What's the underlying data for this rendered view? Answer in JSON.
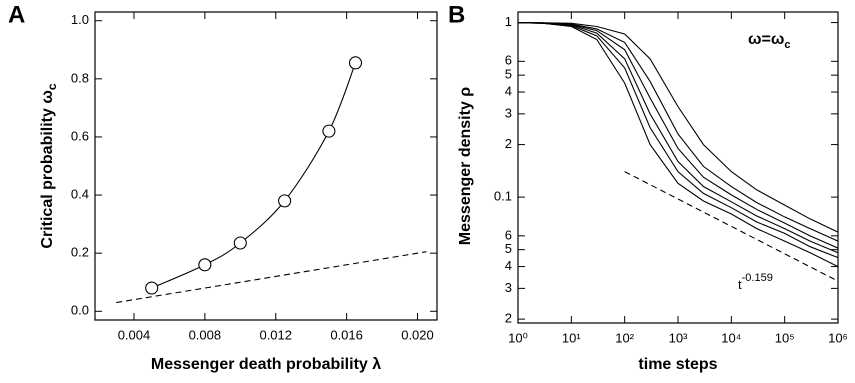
{
  "chart_data": [
    {
      "type": "scatter",
      "panel": "A",
      "xlabel": "Messenger death probability λ",
      "ylabel": "Critical probability ω",
      "ylabel_sub": "c",
      "xlim": [
        0.0018,
        0.0211
      ],
      "ylim": [
        -0.03,
        1.03
      ],
      "xticks": [
        0.004,
        0.008,
        0.012,
        0.016,
        {
          "value": 0.02,
          "label": "0.020"
        }
      ],
      "yticks": [
        {
          "value": 0,
          "label": "0.0"
        },
        0.2,
        0.4,
        0.6,
        0.8,
        {
          "value": 1,
          "label": "1.0"
        }
      ],
      "series": [
        {
          "color": "#000000",
          "marker": "circle",
          "line": "smooth",
          "x": [
            0.005,
            0.008,
            0.01,
            0.0125,
            0.015,
            0.0165
          ],
          "values": [
            0.08,
            0.16,
            0.235,
            0.38,
            0.62,
            0.855
          ]
        },
        {
          "color": "#000000",
          "line": "dashed",
          "x": [
            0.003,
            0.0205
          ],
          "values": [
            0.03,
            0.205
          ]
        }
      ]
    },
    {
      "type": "line",
      "panel": "B",
      "log_x": true,
      "log_y": true,
      "xlabel": "time steps",
      "ylabel": "Messenger density ρ",
      "annotation": "ω=ω",
      "annotation_sub": "c",
      "power_base": "t",
      "power_exp": "-0.159",
      "xlim": [
        1,
        1000000
      ],
      "ylim": [
        0.019,
        1.15
      ],
      "xticks": [
        {
          "value": 1,
          "label": "10⁰"
        },
        {
          "value": 10,
          "label": "10¹"
        },
        {
          "value": 100,
          "label": "10²"
        },
        {
          "value": 1000,
          "label": "10³"
        },
        {
          "value": 10000,
          "label": "10⁴"
        },
        {
          "value": 100000,
          "label": "10⁵"
        },
        {
          "value": 1000000,
          "label": "10⁶"
        }
      ],
      "yticks": [
        1,
        {
          "value": 0.6,
          "label": "6"
        },
        {
          "value": 0.5,
          "label": "5"
        },
        {
          "value": 0.4,
          "label": "4"
        },
        {
          "value": 0.3,
          "label": "3"
        },
        {
          "value": 0.2,
          "label": "2"
        },
        0.1,
        {
          "value": 0.06,
          "label": "6"
        },
        {
          "value": 0.05,
          "label": "5"
        },
        {
          "value": 0.04,
          "label": "4"
        },
        {
          "value": 0.03,
          "label": "3"
        },
        {
          "value": 0.02,
          "label": "2"
        }
      ],
      "x": [
        1,
        3,
        10,
        30,
        100,
        300,
        1000,
        3000,
        10000,
        30000,
        100000,
        300000,
        1000000
      ],
      "series": [
        {
          "color": "#000000",
          "values": [
            1,
            0.99,
            0.95,
            0.8,
            0.45,
            0.2,
            0.12,
            0.095,
            0.08,
            0.066,
            0.056,
            0.048,
            0.04
          ]
        },
        {
          "color": "#000000",
          "values": [
            1,
            0.99,
            0.96,
            0.84,
            0.55,
            0.25,
            0.14,
            0.105,
            0.087,
            0.072,
            0.062,
            0.052,
            0.045
          ]
        },
        {
          "color": "#000000",
          "values": [
            1,
            0.99,
            0.97,
            0.87,
            0.62,
            0.3,
            0.16,
            0.115,
            0.094,
            0.078,
            0.066,
            0.056,
            0.048
          ]
        },
        {
          "color": "#000000",
          "values": [
            1,
            0.995,
            0.975,
            0.9,
            0.7,
            0.37,
            0.19,
            0.13,
            0.103,
            0.085,
            0.071,
            0.06,
            0.051
          ]
        },
        {
          "color": "#000000",
          "values": [
            1,
            0.995,
            0.98,
            0.92,
            0.77,
            0.46,
            0.23,
            0.15,
            0.115,
            0.093,
            0.077,
            0.066,
            0.056
          ]
        },
        {
          "color": "#000000",
          "values": [
            1,
            0.997,
            0.99,
            0.95,
            0.86,
            0.62,
            0.33,
            0.2,
            0.14,
            0.11,
            0.09,
            0.075,
            0.063
          ]
        }
      ],
      "guide": {
        "color": "#000000",
        "line": "dashed",
        "x": [
          100,
          1000000
        ],
        "values": [
          0.14,
          0.033
        ]
      }
    }
  ]
}
